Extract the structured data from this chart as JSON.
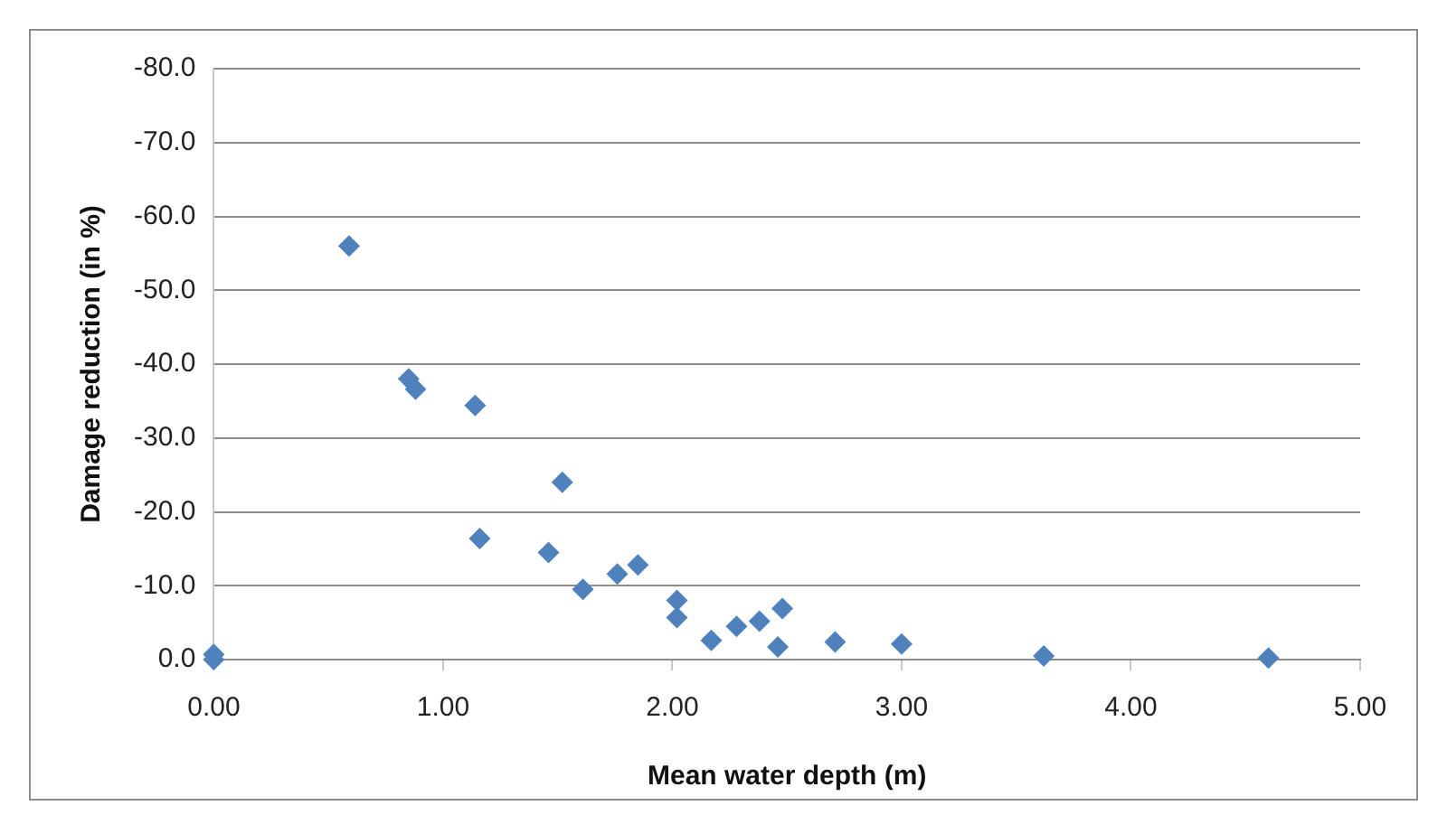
{
  "chart_data": {
    "type": "scatter",
    "xlabel": "Mean water depth (m)",
    "ylabel": "Damage reduction (in %)",
    "xlim": [
      0,
      5
    ],
    "xticks": [
      {
        "value": 0,
        "label": "0.00"
      },
      {
        "value": 1,
        "label": "1.00"
      },
      {
        "value": 2,
        "label": "2.00"
      },
      {
        "value": 3,
        "label": "3.00"
      },
      {
        "value": 4,
        "label": "4.00"
      },
      {
        "value": 5,
        "label": "5.00"
      }
    ],
    "ylim": [
      0,
      -80
    ],
    "yticks": [
      {
        "value": 0,
        "label": "0.0"
      },
      {
        "value": -10,
        "label": "-10.0"
      },
      {
        "value": -20,
        "label": "-20.0"
      },
      {
        "value": -30,
        "label": "-30.0"
      },
      {
        "value": -40,
        "label": "-40.0"
      },
      {
        "value": -50,
        "label": "-50.0"
      },
      {
        "value": -60,
        "label": "-60.0"
      },
      {
        "value": -70,
        "label": "-70.0"
      },
      {
        "value": -80,
        "label": "-80.0"
      }
    ],
    "grid": "y",
    "marker": "diamond",
    "legend": false,
    "series": [
      {
        "color": "#4f81bd",
        "x": [
          0,
          0,
          0.59,
          0.85,
          0.88,
          1.14,
          1.16,
          1.52,
          1.46,
          1.61,
          1.76,
          1.85,
          2.02,
          2.02,
          2.17,
          2.28,
          2.38,
          2.48,
          2.46,
          2.71,
          3.0,
          3.62,
          4.6
        ],
        "values": [
          -0.7,
          0,
          -56,
          -38,
          -36.6,
          -34.4,
          -16.4,
          -24,
          -14.5,
          -9.5,
          -11.6,
          -12.8,
          -8,
          -5.7,
          -2.6,
          -4.5,
          -5.2,
          -6.9,
          -1.7,
          -2.4,
          -2.1,
          -0.5,
          -0.2
        ]
      }
    ]
  }
}
